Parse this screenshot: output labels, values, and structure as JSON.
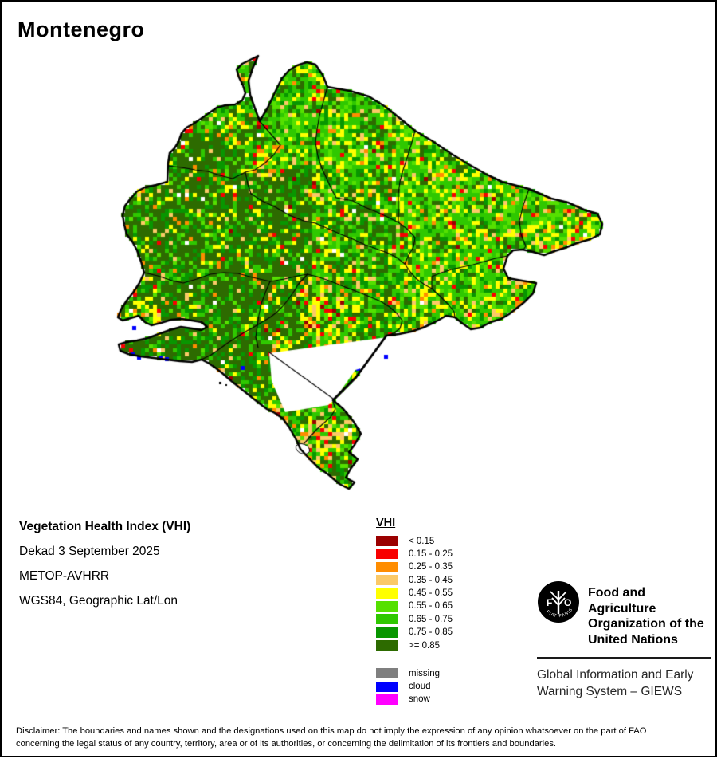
{
  "title": "Montenegro",
  "info": {
    "heading": "Vegetation Health Index (VHI)",
    "lines": [
      "Dekad 3 September 2025",
      "METOP-AVHRR",
      "WGS84, Geographic Lat/Lon"
    ]
  },
  "legend": {
    "title": "VHI",
    "classes": [
      {
        "color": "#9B0000",
        "label": "< 0.15"
      },
      {
        "color": "#F80000",
        "label": "0.15 - 0.25"
      },
      {
        "color": "#FF8D00",
        "label": "0.25 - 0.35"
      },
      {
        "color": "#FBC967",
        "label": "0.35 - 0.45"
      },
      {
        "color": "#FFFF00",
        "label": "0.45 - 0.55"
      },
      {
        "color": "#55E000",
        "label": "0.55 - 0.65"
      },
      {
        "color": "#2FC800",
        "label": "0.65 - 0.75"
      },
      {
        "color": "#089600",
        "label": "0.75 - 0.85"
      },
      {
        "color": "#2D6B00",
        "label": ">= 0.85"
      }
    ],
    "special": [
      {
        "color": "#7F7F7F",
        "label": "missing"
      },
      {
        "color": "#0000FF",
        "label": "cloud"
      },
      {
        "color": "#FF00FF",
        "label": "snow"
      }
    ]
  },
  "branding": {
    "logo_left_letter": "F",
    "logo_right_letter": "O",
    "logo_motto": "FIAT  PANIS",
    "org_lines": [
      "Food and Agriculture",
      "Organization of the",
      "United Nations"
    ],
    "giews_lines": [
      "Global Information and Early",
      "Warning System – GIEWS"
    ]
  },
  "disclaimer": {
    "line1": "Disclaimer: The boundaries and names shown and the designations used on this map do not imply the expression of any opinion whatsoever on the part of FAO",
    "line2": "concerning the legal status of any country, territory, area or of its authorities, or concerning the delimitation of its frontiers and boundaries."
  },
  "map": {
    "region": [
      145,
      60,
      768,
      614
    ],
    "cell": 5,
    "seed": 7,
    "palette": [
      "#9B0000",
      "#F80000",
      "#FF8D00",
      "#FBC967",
      "#FFFF00",
      "#55E000",
      "#2FC800",
      "#089600",
      "#2D6B00",
      "#FFFFFF"
    ],
    "cloud_color": "#0000FF",
    "zones": {
      "default": [
        0.3,
        1.5,
        3,
        4,
        9,
        10,
        28,
        16,
        27,
        1.2
      ],
      "west": [
        0.2,
        1.0,
        2,
        2.5,
        5.5,
        4,
        13,
        16,
        55,
        0.8
      ],
      "north": [
        0.3,
        1.8,
        3,
        4.5,
        13,
        19,
        31,
        13,
        14,
        0.4
      ]
    },
    "profiles": {
      "red": [
        2,
        15,
        16,
        14,
        25,
        8,
        11,
        5,
        3,
        1
      ],
      "yellow": [
        0.5,
        3,
        8,
        13,
        33,
        15,
        17,
        6,
        3.5,
        1
      ],
      "tan": [
        1,
        5,
        12,
        24,
        27,
        10,
        12,
        5,
        3,
        1
      ]
    },
    "hotspots": [
      [
        333,
        200,
        30,
        26,
        0.8,
        "red"
      ],
      [
        281,
        163,
        16,
        12,
        0.75,
        "red"
      ],
      [
        405,
        398,
        40,
        62,
        0.75,
        "red"
      ],
      [
        436,
        441,
        26,
        20,
        0.6,
        "tan"
      ],
      [
        545,
        128,
        20,
        14,
        0.55,
        "yellow"
      ],
      [
        470,
        187,
        28,
        20,
        0.45,
        "yellow"
      ],
      [
        700,
        290,
        58,
        24,
        0.7,
        "yellow"
      ],
      [
        632,
        380,
        34,
        22,
        0.65,
        "yellow"
      ],
      [
        398,
        545,
        55,
        40,
        0.7,
        "tan"
      ],
      [
        178,
        395,
        38,
        28,
        0.8,
        "yellow"
      ],
      [
        604,
        322,
        42,
        30,
        0.45,
        "yellow"
      ],
      [
        740,
        281,
        20,
        14,
        0.55,
        "tan"
      ],
      [
        355,
        430,
        30,
        18,
        0.5,
        "yellow"
      ]
    ],
    "outline": [
      [
        322,
        68
      ],
      [
        315,
        84
      ],
      [
        310,
        99
      ],
      [
        312,
        117
      ],
      [
        318,
        134
      ],
      [
        324,
        150
      ],
      [
        334,
        133
      ],
      [
        344,
        112
      ],
      [
        352,
        96
      ],
      [
        361,
        86
      ],
      [
        371,
        80
      ],
      [
        383,
        76
      ],
      [
        394,
        79
      ],
      [
        403,
        92
      ],
      [
        409,
        107
      ],
      [
        437,
        112
      ],
      [
        461,
        119
      ],
      [
        482,
        132
      ],
      [
        502,
        148
      ],
      [
        519,
        162
      ],
      [
        541,
        175
      ],
      [
        563,
        190
      ],
      [
        586,
        204
      ],
      [
        609,
        217
      ],
      [
        628,
        226
      ],
      [
        662,
        235
      ],
      [
        690,
        247
      ],
      [
        711,
        252
      ],
      [
        733,
        262
      ],
      [
        748,
        266
      ],
      [
        754,
        279
      ],
      [
        751,
        292
      ],
      [
        739,
        298
      ],
      [
        722,
        303
      ],
      [
        707,
        309
      ],
      [
        694,
        313
      ],
      [
        681,
        318
      ],
      [
        667,
        314
      ],
      [
        654,
        311
      ],
      [
        642,
        312
      ],
      [
        635,
        319
      ],
      [
        630,
        335
      ],
      [
        636,
        347
      ],
      [
        653,
        350
      ],
      [
        671,
        353
      ],
      [
        667,
        366
      ],
      [
        656,
        377
      ],
      [
        646,
        385
      ],
      [
        637,
        392
      ],
      [
        627,
        398
      ],
      [
        614,
        402
      ],
      [
        601,
        409
      ],
      [
        589,
        411
      ],
      [
        579,
        404
      ],
      [
        569,
        396
      ],
      [
        558,
        394
      ],
      [
        544,
        402
      ],
      [
        529,
        409
      ],
      [
        514,
        414
      ],
      [
        499,
        417
      ],
      [
        483,
        419
      ],
      [
        445,
        471
      ],
      [
        416,
        500
      ],
      [
        429,
        511
      ],
      [
        442,
        527
      ],
      [
        451,
        542
      ],
      [
        443,
        556
      ],
      [
        436,
        565
      ],
      [
        447,
        574
      ],
      [
        438,
        586
      ],
      [
        432,
        597
      ],
      [
        443,
        603
      ],
      [
        436,
        611
      ],
      [
        424,
        605
      ],
      [
        410,
        593
      ],
      [
        397,
        584
      ],
      [
        385,
        572
      ],
      [
        375,
        561
      ],
      [
        369,
        548
      ],
      [
        361,
        534
      ],
      [
        353,
        523
      ],
      [
        343,
        516
      ],
      [
        333,
        511
      ],
      [
        325,
        505
      ],
      [
        316,
        498
      ],
      [
        306,
        490
      ],
      [
        296,
        482
      ],
      [
        286,
        474
      ],
      [
        277,
        466
      ],
      [
        268,
        459
      ],
      [
        259,
        453
      ],
      [
        251,
        449
      ],
      [
        239,
        452
      ],
      [
        224,
        451
      ],
      [
        207,
        449
      ],
      [
        191,
        447
      ],
      [
        174,
        445
      ],
      [
        159,
        442
      ],
      [
        149,
        438
      ],
      [
        147,
        430
      ],
      [
        157,
        427
      ],
      [
        170,
        425
      ],
      [
        184,
        422
      ],
      [
        197,
        417
      ],
      [
        211,
        412
      ],
      [
        225,
        408
      ],
      [
        239,
        410
      ],
      [
        251,
        412
      ],
      [
        258,
        408
      ],
      [
        251,
        402
      ],
      [
        239,
        400
      ],
      [
        226,
        398
      ],
      [
        213,
        399
      ],
      [
        200,
        403
      ],
      [
        188,
        406
      ],
      [
        180,
        402
      ],
      [
        172,
        394
      ],
      [
        162,
        397
      ],
      [
        152,
        400
      ],
      [
        146,
        396
      ],
      [
        150,
        386
      ],
      [
        157,
        375
      ],
      [
        165,
        365
      ],
      [
        173,
        353
      ],
      [
        179,
        340
      ],
      [
        175,
        326
      ],
      [
        170,
        312
      ],
      [
        164,
        301
      ],
      [
        157,
        292
      ],
      [
        154,
        280
      ],
      [
        152,
        268
      ],
      [
        155,
        256
      ],
      [
        162,
        247
      ],
      [
        170,
        238
      ],
      [
        180,
        233
      ],
      [
        194,
        230
      ],
      [
        208,
        226
      ],
      [
        209,
        203
      ],
      [
        211,
        190
      ],
      [
        217,
        184
      ],
      [
        222,
        176
      ],
      [
        226,
        165
      ],
      [
        232,
        158
      ],
      [
        241,
        153
      ],
      [
        250,
        147
      ],
      [
        260,
        140
      ],
      [
        270,
        133
      ],
      [
        281,
        130
      ],
      [
        293,
        129
      ],
      [
        302,
        124
      ],
      [
        306,
        115
      ],
      [
        303,
        105
      ],
      [
        298,
        95
      ],
      [
        295,
        85
      ],
      [
        302,
        78
      ],
      [
        312,
        73
      ]
    ],
    "inner_borders": [
      [
        [
          324,
          150
        ],
        [
          337,
          165
        ],
        [
          350,
          180
        ],
        [
          341,
          193
        ],
        [
          330,
          203
        ],
        [
          318,
          211
        ],
        [
          306,
          214
        ]
      ],
      [
        [
          306,
          214
        ],
        [
          309,
          229
        ],
        [
          313,
          241
        ],
        [
          327,
          250
        ],
        [
          344,
          258
        ],
        [
          361,
          268
        ],
        [
          379,
          275
        ],
        [
          394,
          278
        ]
      ],
      [
        [
          209,
          206
        ],
        [
          226,
          208
        ],
        [
          243,
          211
        ],
        [
          259,
          213
        ],
        [
          274,
          218
        ],
        [
          290,
          222
        ],
        [
          306,
          214
        ]
      ],
      [
        [
          179,
          340
        ],
        [
          196,
          344
        ],
        [
          214,
          350
        ],
        [
          228,
          353
        ],
        [
          245,
          348
        ],
        [
          262,
          342
        ],
        [
          279,
          340
        ],
        [
          297,
          341
        ],
        [
          315,
          346
        ],
        [
          337,
          351
        ],
        [
          355,
          348
        ],
        [
          372,
          344
        ],
        [
          384,
          342
        ]
      ],
      [
        [
          384,
          342
        ],
        [
          396,
          345
        ],
        [
          411,
          350
        ],
        [
          426,
          356
        ],
        [
          439,
          361
        ],
        [
          452,
          366
        ],
        [
          464,
          371
        ],
        [
          476,
          376
        ],
        [
          487,
          383
        ],
        [
          496,
          391
        ],
        [
          503,
          400
        ],
        [
          500,
          410
        ],
        [
          492,
          416
        ],
        [
          483,
          419
        ]
      ],
      [
        [
          394,
          278
        ],
        [
          410,
          285
        ],
        [
          426,
          292
        ],
        [
          441,
          298
        ],
        [
          456,
          305
        ],
        [
          470,
          310
        ],
        [
          484,
          315
        ],
        [
          496,
          321
        ],
        [
          506,
          329
        ],
        [
          513,
          339
        ],
        [
          521,
          348
        ],
        [
          531,
          355
        ],
        [
          540,
          360
        ]
      ],
      [
        [
          540,
          360
        ],
        [
          551,
          370
        ],
        [
          561,
          380
        ],
        [
          568,
          389
        ],
        [
          569,
          396
        ]
      ],
      [
        [
          441,
          250
        ],
        [
          456,
          258
        ],
        [
          471,
          264
        ],
        [
          484,
          270
        ],
        [
          498,
          277
        ],
        [
          510,
          286
        ],
        [
          519,
          296
        ],
        [
          517,
          308
        ],
        [
          511,
          318
        ],
        [
          506,
          329
        ]
      ],
      [
        [
          409,
          107
        ],
        [
          404,
          125
        ],
        [
          399,
          143
        ],
        [
          396,
          160
        ],
        [
          394,
          177
        ],
        [
          397,
          194
        ],
        [
          402,
          209
        ],
        [
          408,
          222
        ],
        [
          414,
          235
        ],
        [
          420,
          246
        ],
        [
          441,
          250
        ]
      ],
      [
        [
          519,
          162
        ],
        [
          514,
          180
        ],
        [
          509,
          196
        ],
        [
          504,
          211
        ],
        [
          500,
          226
        ],
        [
          498,
          241
        ],
        [
          498,
          256
        ],
        [
          498,
          270
        ],
        [
          498,
          277
        ]
      ],
      [
        [
          662,
          235
        ],
        [
          655,
          255
        ],
        [
          650,
          275
        ],
        [
          652,
          292
        ],
        [
          658,
          307
        ],
        [
          655,
          311
        ]
      ],
      [
        [
          635,
          319
        ],
        [
          620,
          322
        ],
        [
          606,
          326
        ],
        [
          592,
          330
        ],
        [
          578,
          333
        ],
        [
          565,
          336
        ],
        [
          552,
          340
        ],
        [
          540,
          345
        ],
        [
          540,
          360
        ]
      ],
      [
        [
          251,
          449
        ],
        [
          263,
          443
        ],
        [
          273,
          436
        ],
        [
          284,
          428
        ],
        [
          295,
          421
        ],
        [
          306,
          414
        ],
        [
          317,
          408
        ],
        [
          327,
          402
        ],
        [
          337,
          396
        ],
        [
          345,
          390
        ],
        [
          352,
          383
        ],
        [
          358,
          376
        ],
        [
          363,
          369
        ],
        [
          368,
          362
        ],
        [
          372,
          355
        ],
        [
          384,
          342
        ]
      ],
      [
        [
          337,
          351
        ],
        [
          331,
          365
        ],
        [
          326,
          379
        ],
        [
          323,
          393
        ],
        [
          321,
          407
        ],
        [
          319,
          421
        ],
        [
          322,
          434
        ]
      ],
      [
        [
          416,
          502
        ],
        [
          419,
          511
        ],
        [
          413,
          521
        ],
        [
          404,
          529
        ],
        [
          395,
          537
        ],
        [
          387,
          546
        ],
        [
          380,
          554
        ]
      ]
    ],
    "lake_poly": [
      [
        336,
        441
      ],
      [
        483,
        421
      ],
      [
        468,
        455
      ],
      [
        444,
        462
      ],
      [
        418,
        499
      ],
      [
        410,
        506
      ],
      [
        356,
        515
      ],
      [
        339,
        476
      ]
    ],
    "lake_line": [
      [
        336,
        440
      ],
      [
        416,
        498
      ]
    ],
    "lake_border_thick": [
      [
        483,
        419
      ],
      [
        445,
        471
      ],
      [
        416,
        500
      ]
    ],
    "lagoon": [
      378,
      561,
      9,
      6
    ],
    "cloud_cells": [
      [
        162,
        440
      ],
      [
        170,
        444
      ],
      [
        197,
        444
      ],
      [
        205,
        446
      ],
      [
        164,
        407
      ],
      [
        445,
        458
      ],
      [
        368,
        475
      ],
      [
        357,
        471
      ],
      [
        480,
        443
      ],
      [
        300,
        457
      ]
    ],
    "island_dots": [
      [
        273,
        477,
        3
      ],
      [
        281,
        480,
        2
      ]
    ]
  }
}
